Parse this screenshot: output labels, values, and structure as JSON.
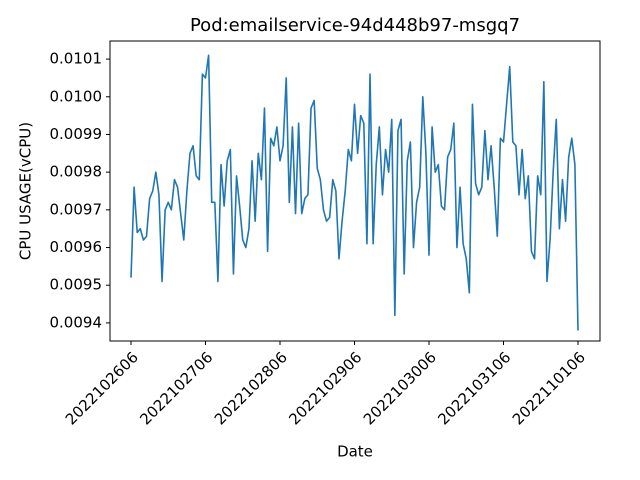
{
  "chart_data": {
    "type": "line",
    "title": "Pod:emailservice-94d448b97-msgq7",
    "x_label": "Date",
    "y_label": "CPU USAGE(vCPU)",
    "categories": [
      "2022102606",
      null,
      null,
      null,
      null,
      null,
      null,
      null,
      null,
      null,
      null,
      null,
      null,
      null,
      null,
      null,
      null,
      null,
      null,
      null,
      null,
      null,
      null,
      null,
      "2022102706",
      null,
      null,
      null,
      null,
      null,
      null,
      null,
      null,
      null,
      null,
      null,
      null,
      null,
      null,
      null,
      null,
      null,
      null,
      null,
      null,
      null,
      null,
      null,
      "2022102806",
      null,
      null,
      null,
      null,
      null,
      null,
      null,
      null,
      null,
      null,
      null,
      null,
      null,
      null,
      null,
      null,
      null,
      null,
      null,
      null,
      null,
      null,
      null,
      "2022102906",
      null,
      null,
      null,
      null,
      null,
      null,
      null,
      null,
      null,
      null,
      null,
      null,
      null,
      null,
      null,
      null,
      null,
      null,
      null,
      null,
      null,
      null,
      null,
      "2022103006",
      null,
      null,
      null,
      null,
      null,
      null,
      null,
      null,
      null,
      null,
      null,
      null,
      null,
      null,
      null,
      null,
      null,
      null,
      null,
      null,
      null,
      null,
      null,
      "2022103106",
      null,
      null,
      null,
      null,
      null,
      null,
      null,
      null,
      null,
      null,
      null,
      null,
      null,
      null,
      null,
      null,
      null,
      null,
      null,
      null,
      null,
      null,
      null,
      "2022110106"
    ],
    "series": [
      {
        "name": "cpu",
        "color": "#1f77b4",
        "values": [
          0.00952,
          0.00976,
          0.00964,
          0.00965,
          0.00962,
          0.00963,
          0.00973,
          0.00975,
          0.0098,
          0.00974,
          0.00951,
          0.0097,
          0.00972,
          0.0097,
          0.00978,
          0.00976,
          0.00969,
          0.00962,
          0.00975,
          0.00985,
          0.00987,
          0.00979,
          0.00978,
          0.01006,
          0.01005,
          0.01011,
          0.00972,
          0.00972,
          0.00951,
          0.00982,
          0.00971,
          0.00983,
          0.00986,
          0.00953,
          0.00979,
          0.00971,
          0.00962,
          0.0096,
          0.00965,
          0.00983,
          0.00967,
          0.00985,
          0.00978,
          0.00997,
          0.00959,
          0.00989,
          0.00987,
          0.00992,
          0.00983,
          0.00987,
          0.01005,
          0.00972,
          0.00992,
          0.00969,
          0.00993,
          0.00969,
          0.00973,
          0.00974,
          0.00997,
          0.00999,
          0.00981,
          0.00978,
          0.0097,
          0.00967,
          0.00968,
          0.00978,
          0.00975,
          0.00957,
          0.00967,
          0.00975,
          0.00986,
          0.00983,
          0.00998,
          0.00985,
          0.00995,
          0.00993,
          0.00961,
          0.01006,
          0.00961,
          0.00982,
          0.00992,
          0.00974,
          0.00986,
          0.0098,
          0.00994,
          0.00942,
          0.00991,
          0.00994,
          0.00953,
          0.00983,
          0.00988,
          0.0096,
          0.00972,
          0.00976,
          0.01,
          0.00985,
          0.00958,
          0.00992,
          0.0098,
          0.00982,
          0.00971,
          0.0097,
          0.00984,
          0.00986,
          0.00993,
          0.0096,
          0.00976,
          0.00961,
          0.00957,
          0.00948,
          0.00998,
          0.00977,
          0.00974,
          0.00976,
          0.00991,
          0.00978,
          0.00987,
          0.00976,
          0.00963,
          0.00989,
          0.00988,
          0.00998,
          0.01008,
          0.00988,
          0.00987,
          0.00974,
          0.00986,
          0.00973,
          0.00979,
          0.00959,
          0.00957,
          0.00979,
          0.00974,
          0.01004,
          0.00951,
          0.00962,
          0.0098,
          0.00994,
          0.00965,
          0.00978,
          0.00967,
          0.00984,
          0.00989,
          0.00982,
          0.00938
        ]
      }
    ],
    "ylim": [
      0.009352,
      0.010148
    ],
    "yticks": [
      0.0094,
      0.0095,
      0.0096,
      0.0097,
      0.0098,
      0.0099,
      {
        "value": 0.01,
        "label": "0.0100"
      },
      0.0101
    ],
    "grid": false
  }
}
